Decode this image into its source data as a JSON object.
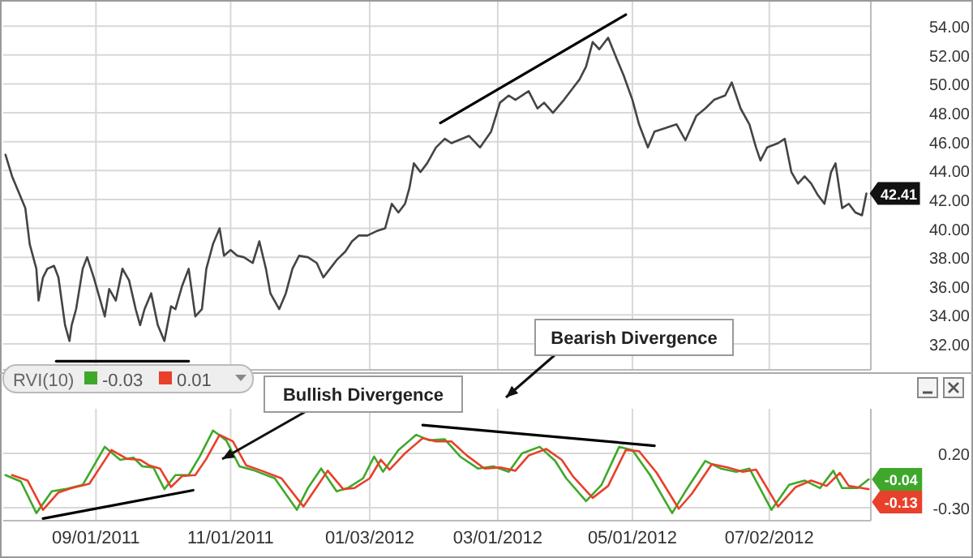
{
  "chart_data": [
    {
      "type": "line",
      "xlim": [
        "2011-07-21",
        "2012-08-17"
      ],
      "ylim": [
        30.2,
        55.7
      ],
      "xticks": [
        {
          "value": "2011-09-01",
          "label": null
        },
        {
          "value": "2011-11-01",
          "label": null
        },
        {
          "value": "2012-01-03",
          "label": null
        },
        {
          "value": "2012-03-01",
          "label": null
        },
        {
          "value": "2012-05-01",
          "label": null
        },
        {
          "value": "2012-07-02",
          "label": null
        }
      ],
      "yticks": [
        {
          "value": 32,
          "label": "32.00"
        },
        {
          "value": 34,
          "label": "34.00"
        },
        {
          "value": 36,
          "label": "36.00"
        },
        {
          "value": 38,
          "label": "38.00"
        },
        {
          "value": 40,
          "label": "40.00"
        },
        {
          "value": 42,
          "label": "42.00"
        },
        {
          "value": 44,
          "label": "44.00"
        },
        {
          "value": 46,
          "label": "46.00"
        },
        {
          "value": 48,
          "label": "48.00"
        },
        {
          "value": 50,
          "label": "50.00"
        },
        {
          "value": 52,
          "label": "52.00"
        },
        {
          "value": 54,
          "label": "54.00"
        }
      ],
      "tick_labels": "y",
      "grid": true,
      "series": [
        {
          "color": "#444444",
          "x": [
            "2011-07-22",
            "2011-07-25",
            "2011-07-28",
            "2011-07-31",
            "2011-08-02",
            "2011-08-05",
            "2011-08-06",
            "2011-08-08",
            "2011-08-10",
            "2011-08-13",
            "2011-08-15",
            "2011-08-18",
            "2011-08-20",
            "2011-08-21",
            "2011-08-23",
            "2011-08-26",
            "2011-08-28",
            "2011-08-31",
            "2011-09-03",
            "2011-09-05",
            "2011-09-07",
            "2011-09-10",
            "2011-09-13",
            "2011-09-16",
            "2011-09-19",
            "2011-09-21",
            "2011-09-23",
            "2011-09-26",
            "2011-09-29",
            "2011-10-02",
            "2011-10-05",
            "2011-10-07",
            "2011-10-10",
            "2011-10-13",
            "2011-10-16",
            "2011-10-19",
            "2011-10-21",
            "2011-10-24",
            "2011-10-27",
            "2011-10-29",
            "2011-11-01",
            "2011-11-04",
            "2011-11-07",
            "2011-11-11",
            "2011-11-14",
            "2011-11-17",
            "2011-11-19",
            "2011-11-23",
            "2011-11-26",
            "2011-11-29",
            "2011-12-02",
            "2011-12-06",
            "2011-12-10",
            "2011-12-13",
            "2011-12-16",
            "2011-12-19",
            "2011-12-23",
            "2011-12-26",
            "2011-12-29",
            "2012-01-02",
            "2012-01-06",
            "2012-01-10",
            "2012-01-13",
            "2012-01-16",
            "2012-01-19",
            "2012-01-21",
            "2012-01-23",
            "2012-01-26",
            "2012-01-29",
            "2012-02-02",
            "2012-02-06",
            "2012-02-09",
            "2012-02-17",
            "2012-02-22",
            "2012-02-27",
            "2012-03-02",
            "2012-03-06",
            "2012-03-09",
            "2012-03-15",
            "2012-03-19",
            "2012-03-22",
            "2012-03-26",
            "2012-03-31",
            "2012-04-04",
            "2012-04-07",
            "2012-04-10",
            "2012-04-13",
            "2012-04-16",
            "2012-04-20",
            "2012-04-24",
            "2012-04-27",
            "2012-05-01",
            "2012-05-04",
            "2012-05-08",
            "2012-05-11",
            "2012-05-15",
            "2012-05-21",
            "2012-05-25",
            "2012-05-30",
            "2012-06-03",
            "2012-06-07",
            "2012-06-12",
            "2012-06-15",
            "2012-06-19",
            "2012-06-23",
            "2012-06-26",
            "2012-06-28",
            "2012-07-01",
            "2012-07-06",
            "2012-07-09",
            "2012-07-12",
            "2012-07-15",
            "2012-07-18",
            "2012-07-21",
            "2012-07-24",
            "2012-07-27",
            "2012-07-30",
            "2012-08-01",
            "2012-08-04",
            "2012-08-07",
            "2012-08-10",
            "2012-08-13",
            "2012-08-15"
          ],
          "values": [
            45.1,
            43.6,
            42.5,
            41.4,
            38.9,
            37.2,
            35.0,
            36.6,
            37.2,
            37.4,
            36.6,
            33.3,
            32.2,
            33.3,
            34.4,
            37.2,
            38.0,
            36.6,
            35.0,
            33.9,
            35.8,
            35.0,
            37.2,
            36.4,
            34.4,
            33.3,
            34.4,
            35.5,
            33.3,
            32.2,
            34.6,
            34.4,
            36.0,
            37.2,
            33.9,
            34.4,
            37.2,
            38.9,
            40.0,
            38.1,
            38.5,
            38.1,
            38.0,
            37.6,
            39.1,
            37.2,
            35.5,
            34.4,
            35.5,
            37.2,
            38.1,
            38.0,
            37.6,
            36.6,
            37.2,
            37.8,
            38.4,
            39.1,
            39.5,
            39.5,
            39.8,
            40.0,
            41.7,
            41.1,
            41.7,
            42.8,
            44.5,
            43.9,
            44.5,
            45.6,
            46.2,
            45.9,
            46.4,
            45.6,
            46.7,
            48.7,
            49.2,
            48.9,
            49.5,
            48.3,
            48.7,
            48.0,
            48.9,
            49.7,
            50.3,
            51.2,
            52.9,
            52.4,
            53.2,
            51.7,
            50.6,
            48.9,
            47.2,
            45.6,
            46.7,
            46.9,
            47.2,
            46.1,
            47.8,
            48.3,
            48.9,
            49.2,
            50.1,
            48.3,
            47.2,
            45.6,
            44.7,
            45.6,
            45.9,
            46.2,
            43.9,
            43.1,
            43.6,
            43.1,
            42.3,
            41.7,
            43.9,
            44.5,
            41.4,
            41.7,
            41.1,
            40.9,
            42.41
          ]
        },
        {
          "color": "#000000",
          "x": [
            "2011-08-14",
            "2011-10-13"
          ],
          "values": [
            30.8,
            30.8
          ]
        },
        {
          "color": "#000000",
          "x": [
            "2012-02-04",
            "2012-04-28"
          ],
          "values": [
            47.3,
            54.8
          ]
        }
      ],
      "annotations": [
        {
          "text": "42.41",
          "x": "2012-08-15",
          "y": 42.41
        }
      ]
    },
    {
      "type": "line",
      "xlim": [
        "2011-07-21",
        "2012-08-17"
      ],
      "ylim": [
        -0.42,
        0.61
      ],
      "xticks": [
        {
          "value": "2011-09-01",
          "label": "09/01/2011"
        },
        {
          "value": "2011-11-01",
          "label": "11/01/2011"
        },
        {
          "value": "2012-01-03",
          "label": "01/03/2012"
        },
        {
          "value": "2012-03-01",
          "label": "03/01/2012"
        },
        {
          "value": "2012-05-01",
          "label": "05/01/2012"
        },
        {
          "value": "2012-07-02",
          "label": "07/02/2012"
        }
      ],
      "yticks": [
        {
          "value": 0.2,
          "label": "0.20"
        },
        {
          "value": -0.3,
          "label": "-0.30"
        }
      ],
      "grid": true,
      "legend": "top left",
      "legend_title": "RVI(10)",
      "series": [
        {
          "name": "-0.03",
          "color": "#3fa82a",
          "x": [
            "2011-07-22",
            "2011-07-29",
            "2011-08-05",
            "2011-08-12",
            "2011-08-18",
            "2011-08-26",
            "2011-09-05",
            "2011-09-12",
            "2011-09-18",
            "2011-09-22",
            "2011-09-27",
            "2011-10-02",
            "2011-10-07",
            "2011-10-13",
            "2011-10-18",
            "2011-10-24",
            "2011-10-30",
            "2011-11-05",
            "2011-11-12",
            "2011-11-21",
            "2011-12-01",
            "2011-12-06",
            "2011-12-12",
            "2011-12-19",
            "2011-12-24",
            "2011-12-31",
            "2012-01-05",
            "2012-01-09",
            "2012-01-16",
            "2012-01-24",
            "2012-01-30",
            "2012-02-06",
            "2012-02-13",
            "2012-02-21",
            "2012-02-28",
            "2012-03-06",
            "2012-03-12",
            "2012-03-20",
            "2012-03-27",
            "2012-04-01",
            "2012-04-10",
            "2012-04-17",
            "2012-04-25",
            "2012-05-01",
            "2012-05-09",
            "2012-05-19",
            "2012-05-25",
            "2012-06-03",
            "2012-06-10",
            "2012-06-17",
            "2012-06-23",
            "2012-07-03",
            "2012-07-11",
            "2012-07-18",
            "2012-07-25",
            "2012-07-31",
            "2012-08-04",
            "2012-08-11",
            "2012-08-16"
          ],
          "values": [
            0.0,
            -0.06,
            -0.35,
            -0.15,
            -0.13,
            -0.09,
            0.26,
            0.14,
            0.16,
            0.08,
            0.07,
            -0.13,
            0.0,
            0.0,
            0.17,
            0.41,
            0.32,
            0.08,
            0.04,
            -0.03,
            -0.32,
            -0.12,
            0.06,
            -0.15,
            -0.12,
            -0.03,
            0.17,
            0.03,
            0.23,
            0.37,
            0.32,
            0.33,
            0.17,
            0.06,
            0.08,
            0.03,
            0.2,
            0.26,
            0.13,
            -0.03,
            -0.24,
            -0.09,
            0.26,
            0.23,
            0.0,
            -0.35,
            -0.15,
            0.13,
            0.06,
            0.03,
            0.06,
            -0.32,
            -0.09,
            -0.05,
            -0.12,
            0.04,
            -0.12,
            -0.12,
            -0.04
          ]
        },
        {
          "name": "0.01",
          "color": "#e8402a",
          "x": [
            "2011-07-25",
            "2011-08-01",
            "2011-08-08",
            "2011-08-15",
            "2011-08-21",
            "2011-08-29",
            "2011-09-08",
            "2011-09-15",
            "2011-09-21",
            "2011-09-25",
            "2011-09-30",
            "2011-10-05",
            "2011-10-10",
            "2011-10-16",
            "2011-10-21",
            "2011-10-27",
            "2011-11-02",
            "2011-11-08",
            "2011-11-15",
            "2011-11-24",
            "2011-12-04",
            "2011-12-09",
            "2011-12-15",
            "2011-12-22",
            "2011-12-27",
            "2012-01-03",
            "2012-01-08",
            "2012-01-12",
            "2012-01-19",
            "2012-01-27",
            "2012-02-02",
            "2012-02-09",
            "2012-02-16",
            "2012-02-24",
            "2012-03-02",
            "2012-03-09",
            "2012-03-15",
            "2012-03-23",
            "2012-03-30",
            "2012-04-04",
            "2012-04-13",
            "2012-04-20",
            "2012-04-28",
            "2012-05-04",
            "2012-05-12",
            "2012-05-22",
            "2012-05-28",
            "2012-06-06",
            "2012-06-13",
            "2012-06-20",
            "2012-06-26",
            "2012-07-06",
            "2012-07-14",
            "2012-07-21",
            "2012-07-28",
            "2012-08-03",
            "2012-08-07",
            "2012-08-13",
            "2012-08-16"
          ],
          "values": [
            0.0,
            -0.05,
            -0.32,
            -0.16,
            -0.12,
            -0.08,
            0.23,
            0.15,
            0.14,
            0.09,
            0.06,
            -0.11,
            -0.01,
            0.0,
            0.15,
            0.37,
            0.31,
            0.09,
            0.04,
            -0.03,
            -0.29,
            -0.14,
            0.04,
            -0.13,
            -0.12,
            -0.03,
            0.14,
            0.05,
            0.2,
            0.34,
            0.31,
            0.31,
            0.18,
            0.06,
            0.07,
            0.04,
            0.18,
            0.24,
            0.14,
            -0.01,
            -0.21,
            -0.1,
            0.23,
            0.22,
            0.02,
            -0.31,
            -0.17,
            0.1,
            0.07,
            0.03,
            0.05,
            -0.29,
            -0.11,
            -0.05,
            -0.1,
            0.02,
            -0.1,
            -0.12,
            -0.13
          ]
        },
        {
          "color": "#000000",
          "x": [
            "2011-08-08",
            "2011-10-15"
          ],
          "values": [
            -0.4,
            -0.14
          ]
        },
        {
          "color": "#000000",
          "x": [
            "2012-01-27",
            "2012-05-11"
          ],
          "values": [
            0.46,
            0.27
          ]
        }
      ],
      "annotations": [
        "Bearish Divergence",
        "Bullish Divergence",
        {
          "text": "-0.04",
          "x": "2012-08-16",
          "y": -0.04
        },
        {
          "text": "-0.13",
          "x": "2012-08-16",
          "y": -0.13
        }
      ]
    }
  ]
}
